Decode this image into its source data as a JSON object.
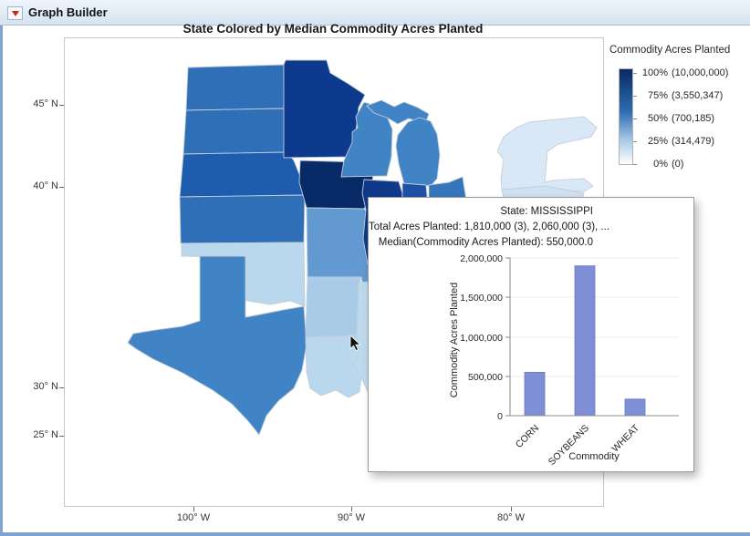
{
  "window": {
    "title_bar": {
      "title": "Graph Builder"
    }
  },
  "chart": {
    "title": "State Colored by Median Commodity Acres Planted",
    "y_axis_ticks": [
      "45° N",
      "40° N",
      "30° N",
      "25° N"
    ],
    "x_axis_ticks": [
      "100° W",
      "90° W",
      "80° W"
    ]
  },
  "legend": {
    "title": "Commodity Acres Planted",
    "entries": [
      {
        "pct": "100%",
        "value": "(10,000,000)"
      },
      {
        "pct": "75%",
        "value": "(3,550,347)"
      },
      {
        "pct": "50%",
        "value": "(700,185)"
      },
      {
        "pct": "25%",
        "value": "(314,479)"
      },
      {
        "pct": "0%",
        "value": "(0)"
      }
    ],
    "gradient_top": "#082a63",
    "gradient_bottom": "#ffffff"
  },
  "map": {
    "state_colors": {
      "north-dakota": "#2f6fb7",
      "south-dakota": "#2f6fb7",
      "nebraska": "#1e5cad",
      "kansas": "#2f6fb7",
      "minnesota": "#0d3a8d",
      "iowa": "#082a66",
      "missouri": "#6199d0",
      "oklahoma": "#b9d7ed",
      "texas": "#4084c6",
      "arkansas": "#aacbe8",
      "louisiana": "#b9d7ed",
      "mississippi": "#bdd9ee",
      "wisconsin": "#4084c6",
      "michigan": "#4084c6",
      "illinois": "#10398a",
      "indiana": "#1e51a5",
      "ohio": "#3576bb",
      "new-york": "#d9e8f6",
      "pennsylvania": "#cfe2f3"
    }
  },
  "tooltip": {
    "line1": "State: MISSISSIPPI",
    "line2": "Total Acres Planted: 1,810,000 (3), 2,060,000 (3), ...",
    "line3": "Median(Commodity Acres Planted): 550,000.0"
  },
  "chart_data": [
    {
      "type": "choropleth",
      "title": "State Colored by Median Commodity Acres Planted",
      "color_scale": {
        "label": "Commodity Acres Planted",
        "stops": [
          {
            "pct": 100,
            "value": 10000000
          },
          {
            "pct": 75,
            "value": 3550347
          },
          {
            "pct": 50,
            "value": 700185
          },
          {
            "pct": 25,
            "value": 314479
          },
          {
            "pct": 0,
            "value": 0
          }
        ]
      },
      "highlighted_state": {
        "name": "MISSISSIPPI",
        "median_commodity_acres_planted": 550000
      }
    },
    {
      "type": "bar",
      "title": "",
      "categories": [
        "CORN",
        "SOYBEANS",
        "WHEAT"
      ],
      "values": [
        550000,
        1900000,
        210000
      ],
      "xlabel": "Commodity",
      "ylabel": "Commodity Acres Planted",
      "ylim": [
        0,
        2000000
      ],
      "yticks": [
        0,
        500000,
        1000000,
        1500000,
        2000000
      ],
      "ytick_labels": [
        "0",
        "500,000",
        "1,000,000",
        "1,500,000",
        "2,000,000"
      ],
      "bar_color": "#7e8fd6",
      "bar_border": "#6578c8",
      "grid": true,
      "legend": "none"
    }
  ]
}
